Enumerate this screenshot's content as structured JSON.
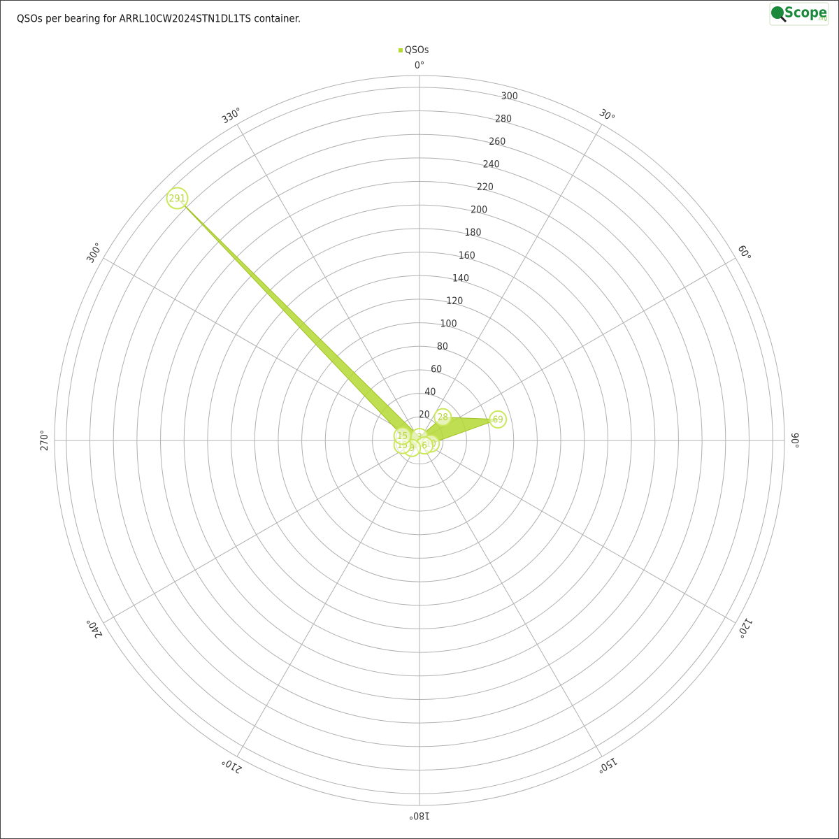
{
  "chart_data": {
    "type": "polar-area",
    "title": "QSOs per bearing for ARRL10CW2024STN1DL1TS container.",
    "logo": {
      "main": "Scope",
      "suffix": ".org"
    },
    "series": [
      {
        "name": "QSOs",
        "color": "#b5d832",
        "x": [
          0,
          45,
          75,
          105,
          135,
          225,
          255,
          285,
          315
        ],
        "values": [
          3,
          28,
          69,
          10,
          6,
          9,
          15,
          15,
          291
        ]
      }
    ],
    "rlim": [
      0,
      310
    ],
    "rticks": [
      20,
      40,
      60,
      80,
      100,
      120,
      140,
      160,
      180,
      200,
      220,
      240,
      260,
      280,
      300
    ],
    "thetaticks": [
      {
        "value": 0,
        "label": "0°"
      },
      {
        "value": 30,
        "label": "30°"
      },
      {
        "value": 60,
        "label": "60°"
      },
      {
        "value": 90,
        "label": "90°"
      },
      {
        "value": 120,
        "label": "120°"
      },
      {
        "value": 150,
        "label": "150°"
      },
      {
        "value": 180,
        "label": "180°"
      },
      {
        "value": 210,
        "label": "210°"
      },
      {
        "value": 240,
        "label": "240°"
      },
      {
        "value": 270,
        "label": "270°"
      },
      {
        "value": 300,
        "label": "300°"
      },
      {
        "value": 330,
        "label": "330°"
      }
    ],
    "grid": true
  }
}
